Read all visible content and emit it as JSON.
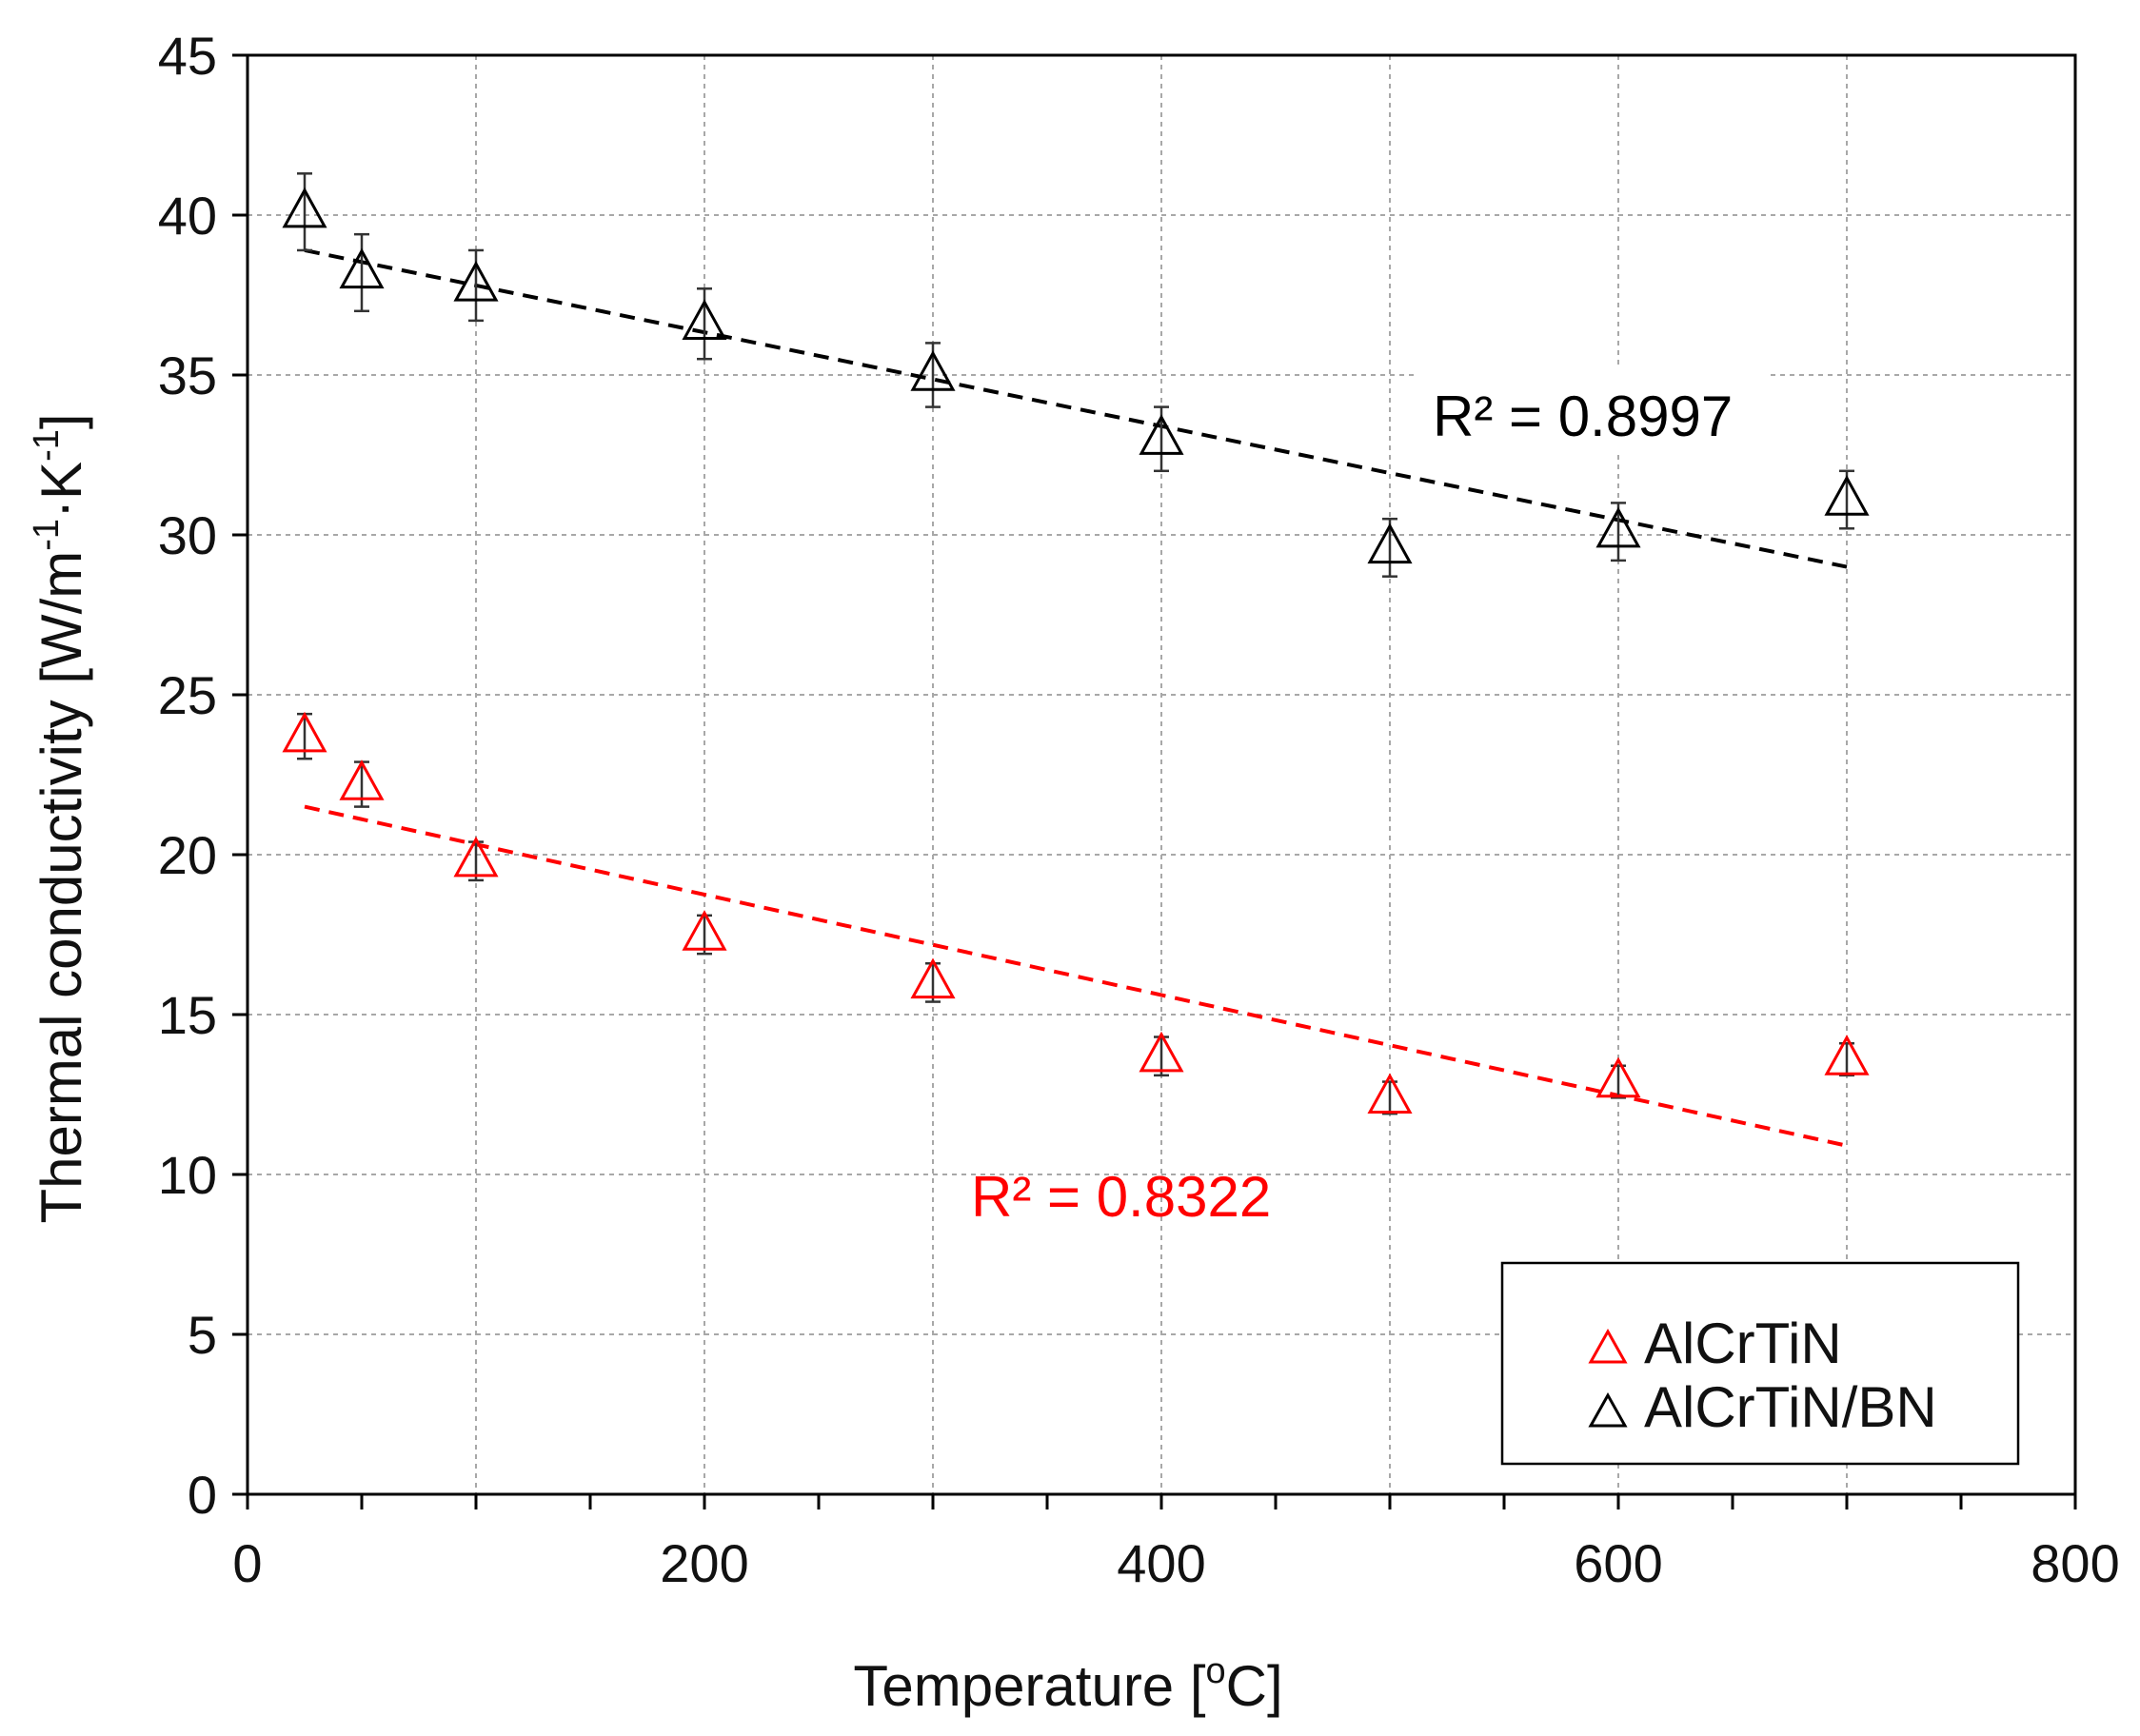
{
  "chart_data": {
    "type": "scatter",
    "xlabel": "Temperature [",
    "xlabel_sup": "o",
    "xlabel_end": "C]",
    "ylabel": "Thermal conductivity [W/m",
    "ylabel_sup1": "-1",
    "ylabel_mid": "·K",
    "ylabel_sup2": "-1",
    "ylabel_end": "]",
    "xlim": [
      0,
      800
    ],
    "ylim": [
      0,
      45
    ],
    "xticks": [
      0,
      200,
      400,
      600,
      800
    ],
    "yticks": [
      0,
      5,
      10,
      15,
      20,
      25,
      30,
      35,
      40,
      45
    ],
    "grid": true,
    "legend_position": "bottom-right",
    "series": [
      {
        "name": "AlCrTiN",
        "color": "#ff0000",
        "marker": "open-triangle",
        "x": [
          25,
          50,
          100,
          200,
          300,
          400,
          500,
          600,
          700
        ],
        "y": [
          23.7,
          22.2,
          19.8,
          17.5,
          16.0,
          13.7,
          12.4,
          12.9,
          13.6
        ],
        "yerr": [
          0.7,
          0.7,
          0.6,
          0.6,
          0.6,
          0.6,
          0.5,
          0.5,
          0.5
        ],
        "trendline": {
          "x0": 25,
          "y0": 21.5,
          "x1": 700,
          "y1": 10.9
        },
        "r2_label": "R² = 0.8322"
      },
      {
        "name": "AlCrTiN/BN",
        "color": "#000000",
        "marker": "open-triangle",
        "x": [
          25,
          50,
          100,
          200,
          300,
          400,
          500,
          600,
          700
        ],
        "y": [
          40.1,
          38.2,
          37.8,
          36.6,
          35.0,
          33.0,
          29.6,
          30.1,
          31.1
        ],
        "yerr": [
          1.2,
          1.2,
          1.1,
          1.1,
          1.0,
          1.0,
          0.9,
          0.9,
          0.9
        ],
        "trendline": {
          "x0": 25,
          "y0": 38.9,
          "x1": 700,
          "y1": 29.0
        },
        "r2_label": "R² = 0.8997"
      }
    ]
  }
}
